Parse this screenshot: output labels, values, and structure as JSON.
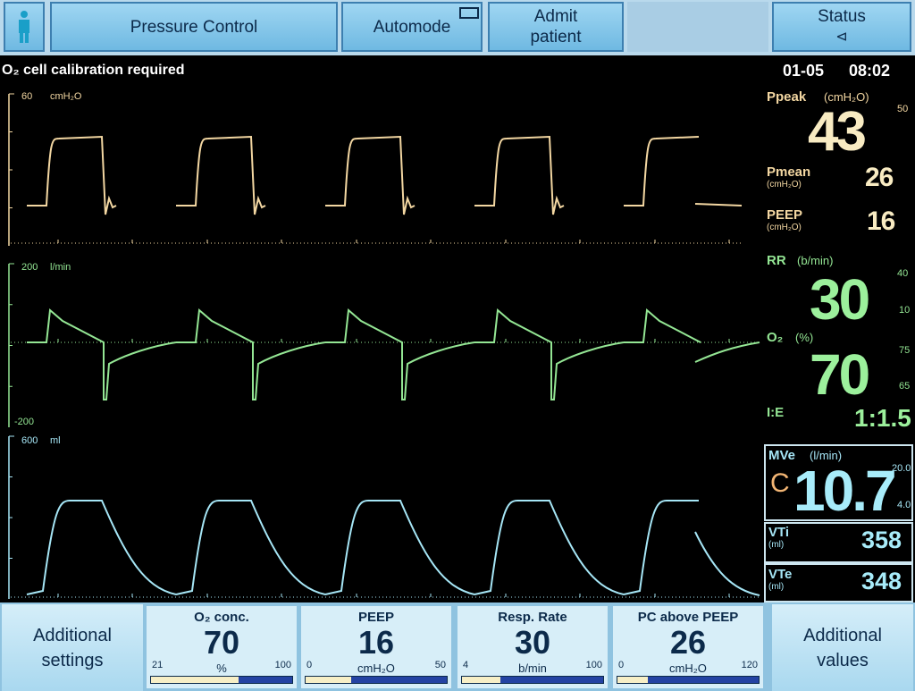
{
  "top_bar": {
    "mode": "Pressure Control",
    "automode": "Automode",
    "admit": "Admit patient",
    "status": "Status"
  },
  "status_bar": {
    "message": "O₂ cell calibration required",
    "date": "01-05",
    "time": "08:02"
  },
  "waveforms": [
    {
      "scale_max": 60,
      "unit": "cmH₂O"
    },
    {
      "scale_max": 200,
      "unit": "l/min",
      "scale_min": -200
    },
    {
      "scale_max": 600,
      "unit": "ml"
    }
  ],
  "measurements": {
    "ppeak": {
      "label": "Ppeak",
      "unit": "(cmH₂O)",
      "value": 43,
      "alarm_high": 50
    },
    "pmean": {
      "label": "Pmean",
      "unit": "(cmH₂O)",
      "value": 26
    },
    "peep": {
      "label": "PEEP",
      "unit": "(cmH₂O)",
      "value": 16
    },
    "rr": {
      "label": "RR",
      "unit": "(b/min)",
      "value": 30,
      "alarm_high": 40,
      "alarm_low": 10
    },
    "o2": {
      "label": "O₂",
      "unit": "(%)",
      "value": 70,
      "alarm_high": 75,
      "alarm_low": 65
    },
    "ie": {
      "label": "I:E",
      "value": "1:1.5"
    },
    "mve": {
      "label": "MVe",
      "unit": "(l/min)",
      "flag": "C",
      "value": "10.7",
      "alarm_high": "20.0",
      "alarm_low": "4.0"
    },
    "vti": {
      "label": "VTi",
      "unit": "(ml)",
      "value": 358
    },
    "vte": {
      "label": "VTe",
      "unit": "(ml)",
      "value": 348
    }
  },
  "settings": [
    {
      "label": "O₂ conc.",
      "value": 70,
      "unit": "%",
      "min": 21,
      "max": 100
    },
    {
      "label": "PEEP",
      "value": 16,
      "unit": "cmH₂O",
      "min": 0,
      "max": 50
    },
    {
      "label": "Resp. Rate",
      "value": 30,
      "unit": "b/min",
      "min": 4,
      "max": 100
    },
    {
      "label": "PC above PEEP",
      "value": 26,
      "unit": "cmH₂O",
      "min": 0,
      "max": 120
    }
  ],
  "bottom_buttons": {
    "left": "Additional settings",
    "right": "Additional values"
  }
}
